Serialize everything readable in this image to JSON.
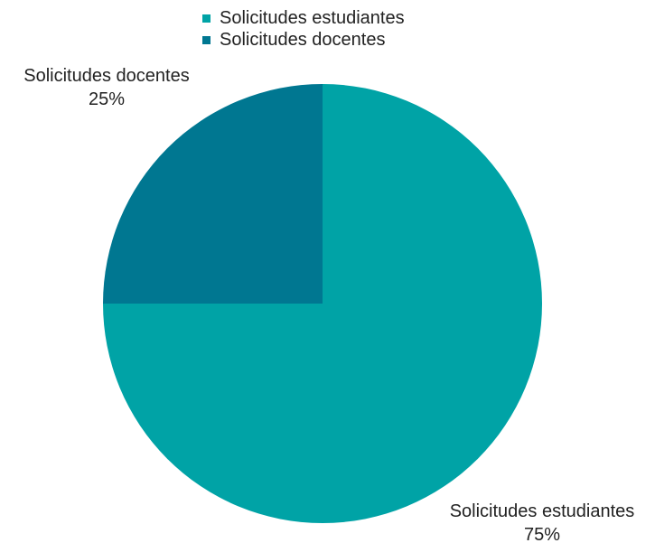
{
  "chart_data": {
    "type": "pie",
    "title": "",
    "series": [
      {
        "slices": [
          {
            "label": "Solicitudes estudiantes",
            "value": 75,
            "percent_label": "75%",
            "color": "#00A3A6"
          },
          {
            "label": "Solicitudes docentes",
            "value": 25,
            "percent_label": "25%",
            "color": "#007791"
          }
        ]
      }
    ],
    "legend": {
      "position": "top",
      "items": [
        {
          "label": "Solicitudes estudiantes",
          "color": "#00A3A6"
        },
        {
          "label": "Solicitudes docentes",
          "color": "#007791"
        }
      ]
    }
  }
}
